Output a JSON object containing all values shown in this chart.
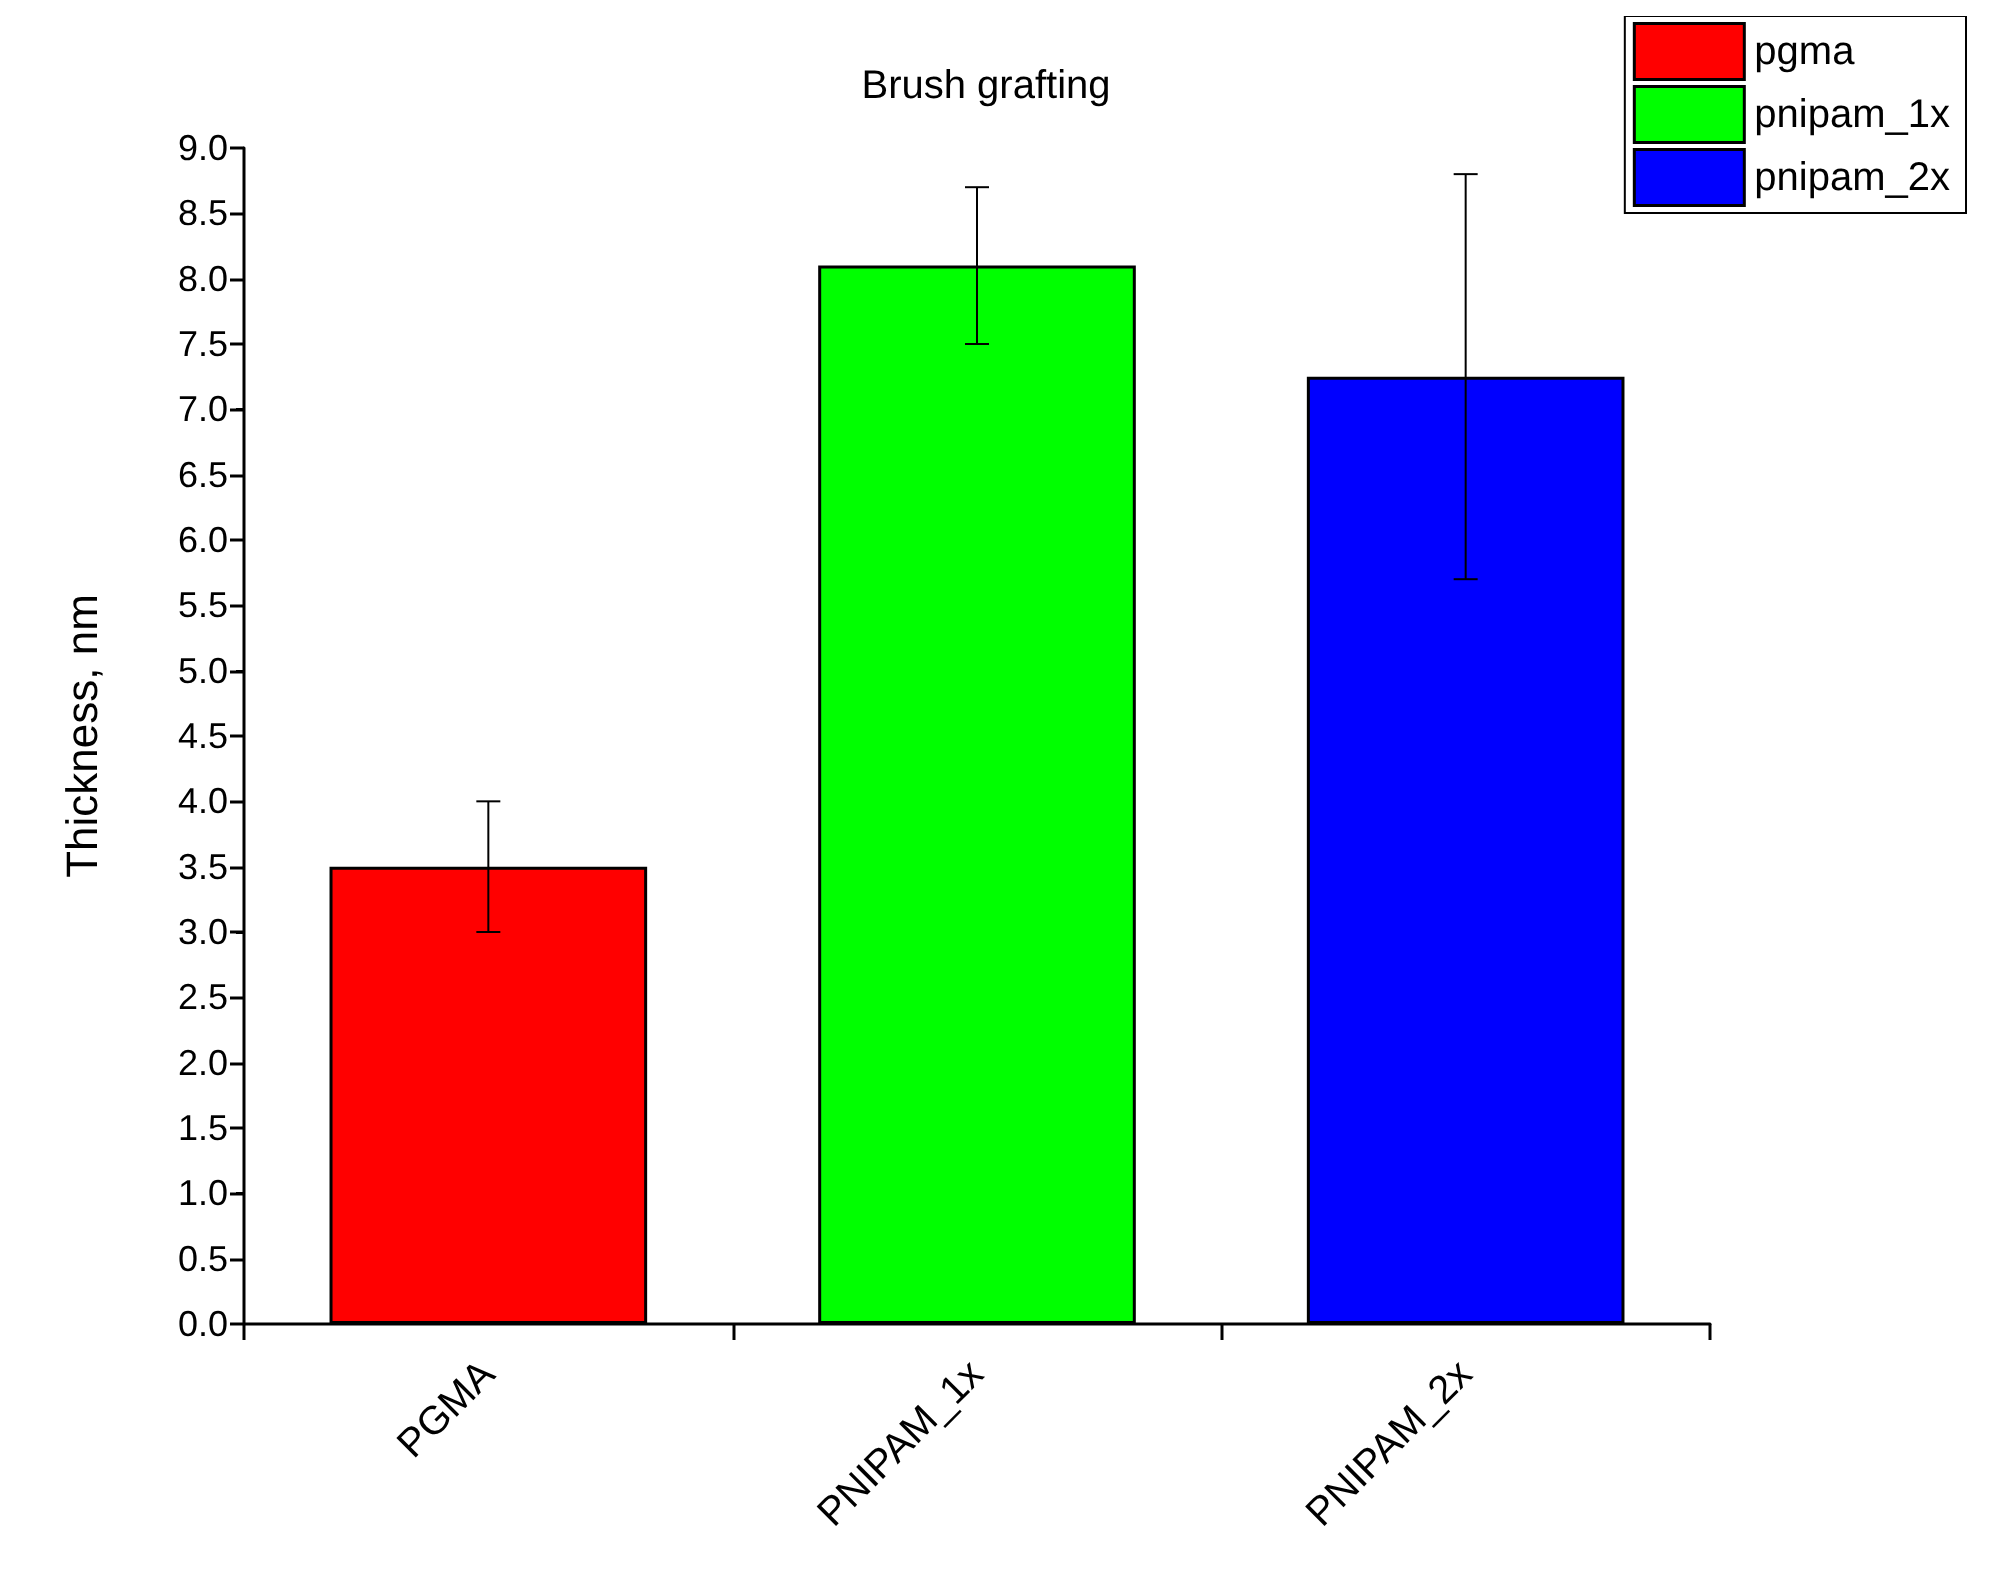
{
  "chart_data": {
    "type": "bar",
    "title": "Brush grafting",
    "ylabel": "Thickness, nm",
    "categories": [
      "PGMA",
      "PNIPAM_1x",
      "PNIPAM_2x"
    ],
    "series": [
      {
        "name": "pgma",
        "color": "#ff0000",
        "values": [
          3.5,
          null,
          null
        ],
        "errors": [
          [
            3.0,
            4.0
          ],
          null,
          null
        ]
      },
      {
        "name": "pnipam_1x",
        "color": "#00ff00",
        "values": [
          null,
          8.1,
          null
        ],
        "errors": [
          null,
          [
            7.5,
            8.7
          ],
          null
        ]
      },
      {
        "name": "pnipam_2x",
        "color": "#0000ff",
        "values": [
          null,
          null,
          7.25
        ],
        "errors": [
          null,
          null,
          [
            5.7,
            8.8
          ]
        ]
      }
    ],
    "ylim": [
      0,
      9
    ],
    "yticks": [
      {
        "value": 0,
        "label": "0.0"
      },
      {
        "value": 0.5,
        "label": "0.5"
      },
      {
        "value": 1,
        "label": "1.0"
      },
      {
        "value": 1.5,
        "label": "1.5"
      },
      {
        "value": 2,
        "label": "2.0"
      },
      {
        "value": 2.5,
        "label": "2.5"
      },
      {
        "value": 3,
        "label": "3.0"
      },
      {
        "value": 3.5,
        "label": "3.5"
      },
      {
        "value": 4,
        "label": "4.0"
      },
      {
        "value": 4.5,
        "label": "4.5"
      },
      {
        "value": 5,
        "label": "5.0"
      },
      {
        "value": 5.5,
        "label": "5.5"
      },
      {
        "value": 6,
        "label": "6.0"
      },
      {
        "value": 6.5,
        "label": "6.5"
      },
      {
        "value": 7,
        "label": "7.0"
      },
      {
        "value": 7.5,
        "label": "7.5"
      },
      {
        "value": 8,
        "label": "8.0"
      },
      {
        "value": 8.5,
        "label": "8.5"
      },
      {
        "value": 9,
        "label": "9.0"
      }
    ],
    "legend": "top right",
    "grid": false
  }
}
